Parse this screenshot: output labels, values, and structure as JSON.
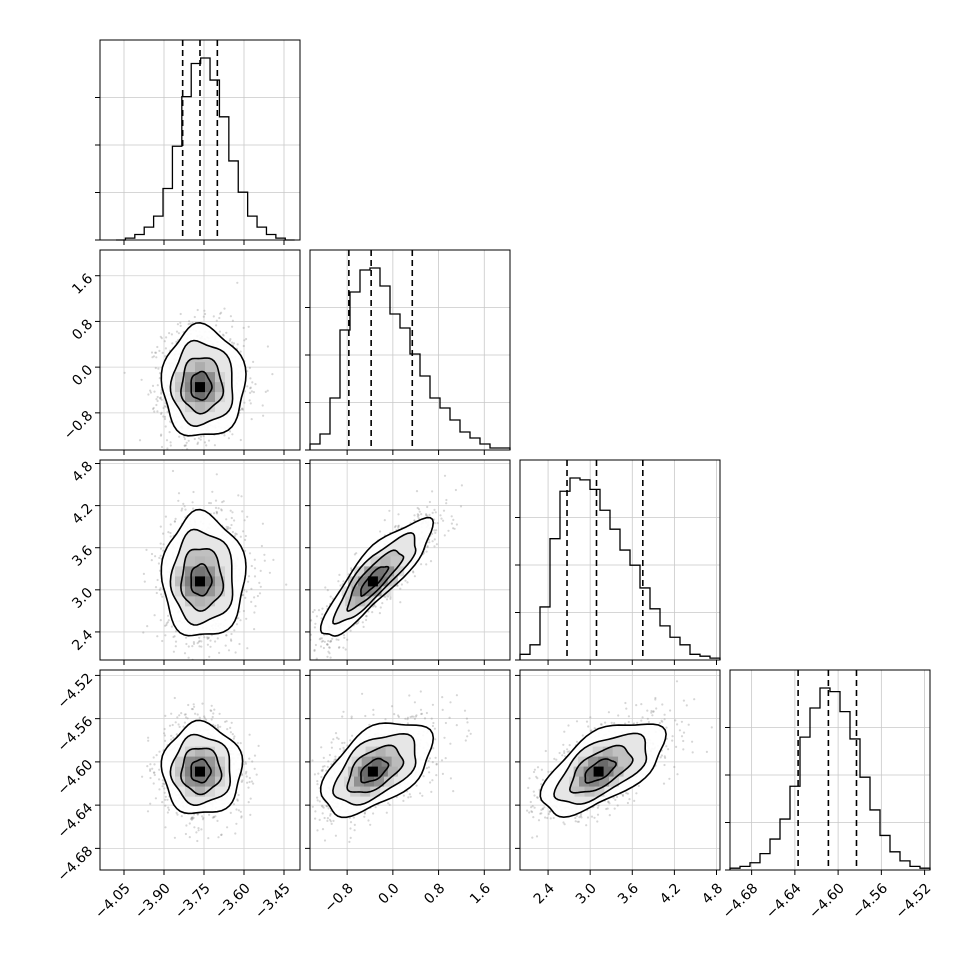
{
  "chart_data": {
    "type": "corner",
    "parameters": [
      {
        "ticks": [
          -4.05,
          -3.9,
          -3.75,
          -3.6,
          -3.45
        ],
        "tick_labels": [
          "−4.05",
          "−3.90",
          "−3.75",
          "−3.60",
          "−3.45"
        ],
        "range": [
          -4.14,
          -3.39
        ]
      },
      {
        "ticks": [
          -0.8,
          0.0,
          0.8,
          1.6
        ],
        "tick_labels": [
          "−0.8",
          "0.0",
          "0.8",
          "1.6"
        ],
        "range": [
          -1.45,
          2.05
        ]
      },
      {
        "ticks": [
          2.4,
          3.0,
          3.6,
          4.2,
          4.8
        ],
        "tick_labels": [
          "2.4",
          "3.0",
          "3.6",
          "4.2",
          "4.8"
        ],
        "range": [
          2.0,
          4.85
        ]
      },
      {
        "ticks": [
          -4.68,
          -4.64,
          -4.6,
          -4.56,
          -4.52
        ],
        "tick_labels": [
          "−4.68",
          "−4.64",
          "−4.60",
          "−4.56",
          "−4.52"
        ],
        "range": [
          -4.7,
          -4.515
        ]
      }
    ],
    "histograms": [
      {
        "quantiles": [
          -3.83,
          -3.765,
          -3.7
        ],
        "counts": [
          0,
          1,
          3,
          7,
          13,
          28,
          51,
          78,
          96,
          99,
          87,
          67,
          43,
          26,
          13,
          7,
          3,
          1,
          0
        ]
      },
      {
        "quantiles": [
          -0.77,
          -0.38,
          0.34
        ],
        "counts": [
          3,
          8,
          26,
          60,
          79,
          90,
          91,
          82,
          68,
          61,
          48,
          37,
          26,
          21,
          15,
          9,
          6,
          3,
          1,
          1
        ]
      },
      {
        "quantiles": [
          2.67,
          3.09,
          3.75
        ],
        "counts": [
          3,
          8,
          28,
          64,
          89,
          96,
          95,
          90,
          79,
          69,
          58,
          50,
          38,
          27,
          18,
          12,
          8,
          3,
          2,
          1
        ]
      },
      {
        "quantiles": [
          -4.637,
          -4.609,
          -4.583
        ],
        "counts": [
          1,
          2,
          4,
          9,
          17,
          28,
          46,
          73,
          89,
          100,
          98,
          87,
          72,
          51,
          33,
          19,
          10,
          5,
          2,
          1
        ]
      }
    ],
    "density": [
      {
        "row": 1,
        "col": 0,
        "cx": -3.765,
        "cy": -0.35,
        "sx": 0.07,
        "sy": 0.44,
        "rho": 0.0,
        "skew": 0.35
      },
      {
        "row": 2,
        "col": 0,
        "cx": -3.765,
        "cy": 3.12,
        "sx": 0.07,
        "sy": 0.4,
        "rho": 0.0,
        "skew": 0.35
      },
      {
        "row": 2,
        "col": 1,
        "cx": -0.35,
        "cy": 3.12,
        "sx": 0.44,
        "sy": 0.4,
        "rho": 0.9,
        "skew": 0.3
      },
      {
        "row": 3,
        "col": 0,
        "cx": -3.765,
        "cy": -4.609,
        "sx": 0.07,
        "sy": 0.02,
        "rho": 0.0,
        "skew": 0.2
      },
      {
        "row": 3,
        "col": 1,
        "cx": -0.35,
        "cy": -4.609,
        "sx": 0.44,
        "sy": 0.02,
        "rho": 0.55,
        "skew": 0.3
      },
      {
        "row": 3,
        "col": 2,
        "cx": 3.12,
        "cy": -4.609,
        "sx": 0.4,
        "sy": 0.02,
        "rho": 0.65,
        "skew": 0.3
      }
    ],
    "contour_levels": [
      0.5,
      1.0,
      1.5,
      2.0
    ],
    "grid": true
  }
}
